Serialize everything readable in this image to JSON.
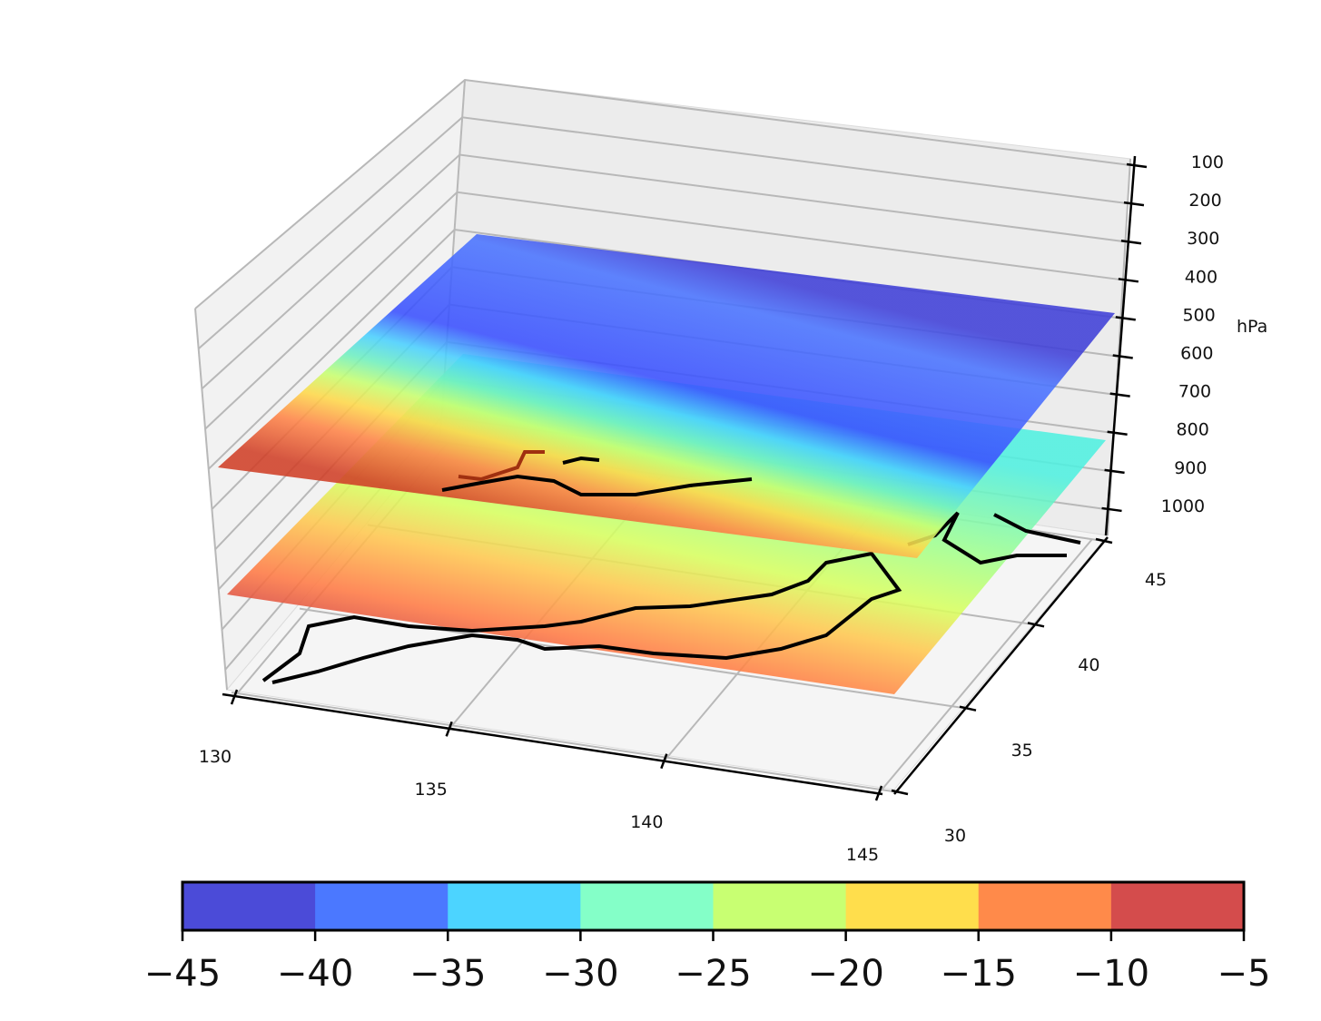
{
  "chart_data": {
    "type": "3d-contourf",
    "title": "",
    "xlabel": "",
    "ylabel": "",
    "zlabel": "hPa",
    "x_ticks": [
      "130",
      "135",
      "140",
      "145"
    ],
    "y_ticks": [
      "30",
      "35",
      "40",
      "45"
    ],
    "z_ticks": [
      "100",
      "200",
      "300",
      "400",
      "500",
      "600",
      "700",
      "800",
      "900",
      "1000"
    ],
    "xlim": [
      130,
      145
    ],
    "ylim": [
      30,
      45
    ],
    "zlim": [
      1050,
      100
    ],
    "z_inverted": true,
    "grid": true,
    "pressure_levels_estimated": [
      500,
      850
    ],
    "colorbar": {
      "orientation": "horizontal",
      "placement": "bottom",
      "levels": [
        -45,
        -40,
        -35,
        -30,
        -25,
        -20,
        -15,
        -10,
        -5
      ],
      "tick_labels": [
        "−45",
        "−40",
        "−35",
        "−30",
        "−25",
        "−20",
        "−15",
        "−10",
        "−5"
      ],
      "colors": [
        "#4b4bd8",
        "#4b78ff",
        "#4cd4ff",
        "#84ffc8",
        "#c8ff72",
        "#ffde4c",
        "#ff8a4a",
        "#d44c4c"
      ]
    }
  }
}
